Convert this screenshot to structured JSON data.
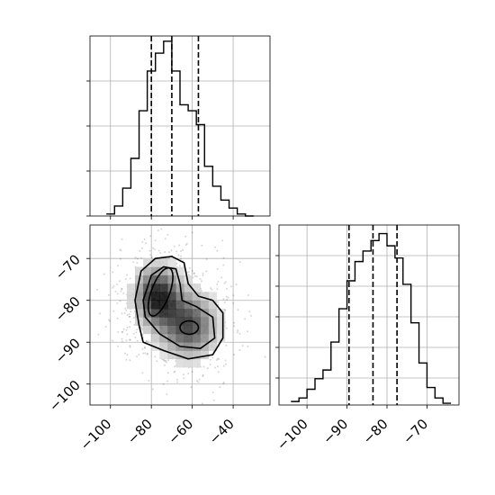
{
  "chart_data": {
    "type": "corner",
    "parameters": [
      {
        "name": ""
      },
      {
        "name": ""
      }
    ],
    "marginal_1": {
      "type": "histogram",
      "x_ticks": [
        "−100",
        "−80",
        "−60",
        "−40"
      ],
      "xlim": [
        -110,
        -22
      ],
      "grid": true,
      "bin_edges": [
        -102,
        -98,
        -94,
        -90,
        -86,
        -82,
        -78,
        -74,
        -70,
        -66,
        -62,
        -58,
        -54,
        -50,
        -46,
        -42,
        -38,
        -34,
        -30
      ],
      "counts": [
        0.01,
        0.05,
        0.14,
        0.29,
        0.53,
        0.73,
        0.82,
        0.88,
        0.73,
        0.56,
        0.53,
        0.46,
        0.25,
        0.15,
        0.08,
        0.04,
        0.01,
        0.0
      ],
      "quantiles": [
        -80,
        -70,
        -57
      ]
    },
    "marginal_2": {
      "type": "histogram",
      "x_ticks": [
        "−100",
        "−90",
        "−80",
        "−70"
      ],
      "xlim": [
        -107,
        -62
      ],
      "grid": true,
      "bin_edges": [
        -104,
        -102,
        -100,
        -98,
        -96,
        -94,
        -92,
        -90,
        -88,
        -86,
        -84,
        -82,
        -80,
        -78,
        -76,
        -74,
        -72,
        -70,
        -68,
        -66,
        -64
      ],
      "counts": [
        0.02,
        0.04,
        0.09,
        0.15,
        0.2,
        0.36,
        0.55,
        0.71,
        0.82,
        0.88,
        0.94,
        0.98,
        0.91,
        0.84,
        0.69,
        0.47,
        0.24,
        0.1,
        0.04,
        0.01
      ],
      "quantiles": [
        -89.5,
        -83.5,
        -77.5
      ]
    },
    "joint": {
      "type": "scatter_density_contour",
      "x_ticks": [
        "−100",
        "−80",
        "−60",
        "−40"
      ],
      "y_ticks": [
        "−70",
        "−80",
        "−90",
        "−100"
      ],
      "xlim": [
        -110,
        -22
      ],
      "ylim": [
        -105,
        -62
      ],
      "grid": true,
      "components": [
        {
          "mean_x": -77,
          "mean_y": -79,
          "sd_x": 7,
          "sd_y": 4.5,
          "weight": 0.55
        },
        {
          "mean_x": -62,
          "mean_y": -86,
          "sd_x": 9,
          "sd_y": 5,
          "weight": 0.45
        }
      ]
    }
  }
}
